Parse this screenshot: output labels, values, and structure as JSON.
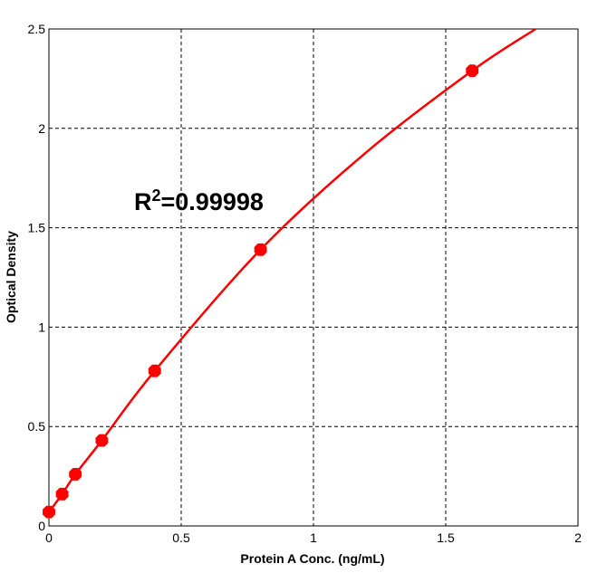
{
  "chart_data": {
    "type": "scatter",
    "title": "",
    "xlabel": "Protein A Conc. (ng/mL)",
    "ylabel": "Optical Density",
    "xlim": [
      0,
      2
    ],
    "ylim": [
      0,
      2.5
    ],
    "x_ticks": [
      "0",
      "0.5",
      "1",
      "1.5",
      "2"
    ],
    "y_ticks": [
      "0",
      "0.5",
      "1",
      "1.5",
      "2",
      "2.5"
    ],
    "grid": true,
    "legend": "none",
    "annotation": {
      "base": "R",
      "superscript": "2",
      "value": "=0.99998"
    },
    "series": [
      {
        "kind": "points",
        "x": [
          0,
          0.05,
          0.1,
          0.2,
          0.4,
          0.8,
          1.6
        ],
        "y": [
          0.07,
          0.16,
          0.26,
          0.43,
          0.78,
          1.39,
          2.29
        ],
        "color": "#ff0000"
      },
      {
        "kind": "fit-curve",
        "x_range": [
          0,
          1.84
        ],
        "samples": [
          [
            0,
            0.07
          ],
          [
            0.05,
            0.16
          ],
          [
            0.1,
            0.26
          ],
          [
            0.2,
            0.43
          ],
          [
            0.4,
            0.78
          ],
          [
            0.8,
            1.39
          ],
          [
            1.2,
            1.88
          ],
          [
            1.6,
            2.29
          ],
          [
            1.84,
            2.5
          ]
        ],
        "color": "#ff0000"
      }
    ]
  }
}
